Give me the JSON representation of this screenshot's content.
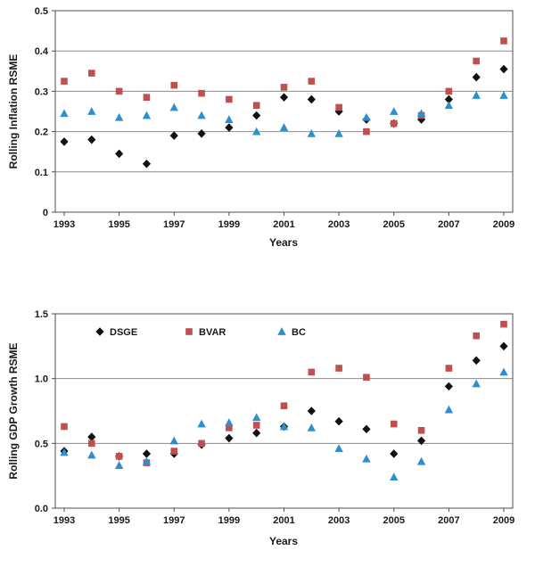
{
  "colors": {
    "grid": "#8c8c8c",
    "axis": "#4d4d4d",
    "text": "#1a1a1a"
  },
  "chart_data": [
    {
      "type": "scatter",
      "title": "",
      "ylabel": "Rolling Inflation RSME",
      "xlabel": "Years",
      "ylim": [
        0,
        0.5
      ],
      "yticks": [
        0,
        0.1,
        0.2,
        0.3,
        0.4,
        0.5
      ],
      "ytick_labels": [
        "0",
        "0.1",
        "0.2",
        "0.3",
        "0.4",
        "0.5"
      ],
      "x": [
        1993,
        1994,
        1995,
        1996,
        1997,
        1998,
        1999,
        2000,
        2001,
        2002,
        2003,
        2004,
        2005,
        2006,
        2007,
        2008,
        2009
      ],
      "xticks": [
        1993,
        1995,
        1997,
        1999,
        2001,
        2003,
        2005,
        2007,
        2009
      ],
      "xtick_labels": [
        "1993",
        "1995",
        "1997",
        "1999",
        "2001",
        "2003",
        "2005",
        "2007",
        "2009"
      ],
      "grid": true,
      "legend": "none",
      "series": [
        {
          "name": "DSGE",
          "marker": "diamond",
          "color": "#111111",
          "values": [
            0.175,
            0.18,
            0.145,
            0.12,
            0.19,
            0.195,
            0.21,
            0.24,
            0.285,
            0.28,
            0.25,
            0.23,
            0.22,
            0.23,
            0.28,
            0.335,
            0.355
          ]
        },
        {
          "name": "BVAR",
          "marker": "square",
          "color": "#c0504d",
          "values": [
            0.325,
            0.345,
            0.3,
            0.285,
            0.315,
            0.295,
            0.28,
            0.265,
            0.31,
            0.325,
            0.26,
            0.2,
            0.22,
            0.24,
            0.3,
            0.375,
            0.425
          ]
        },
        {
          "name": "BC",
          "marker": "triangle",
          "color": "#2e8fce",
          "values": [
            0.245,
            0.25,
            0.235,
            0.24,
            0.26,
            0.24,
            0.23,
            0.2,
            0.21,
            0.195,
            0.195,
            0.235,
            0.25,
            0.245,
            0.265,
            0.29,
            0.29
          ]
        }
      ]
    },
    {
      "type": "scatter",
      "title": "",
      "ylabel": "Rolling GDP Growth RSME",
      "xlabel": "Years",
      "ylim": [
        0,
        1.5
      ],
      "yticks": [
        0,
        0.5,
        1.0,
        1.5
      ],
      "ytick_labels": [
        "0.0",
        "0.5",
        "1.0",
        "1.5"
      ],
      "x": [
        1993,
        1994,
        1995,
        1996,
        1997,
        1998,
        1999,
        2000,
        2001,
        2002,
        2003,
        2004,
        2005,
        2006,
        2007,
        2008,
        2009
      ],
      "xticks": [
        1993,
        1995,
        1997,
        1999,
        2001,
        2003,
        2005,
        2007,
        2009
      ],
      "xtick_labels": [
        "1993",
        "1995",
        "1997",
        "1999",
        "2001",
        "2003",
        "2005",
        "2007",
        "2009"
      ],
      "grid": true,
      "legend": "top-inside",
      "series": [
        {
          "name": "DSGE",
          "marker": "diamond",
          "color": "#111111",
          "values": [
            0.44,
            0.55,
            0.4,
            0.42,
            0.42,
            0.49,
            0.54,
            0.58,
            0.63,
            0.75,
            0.67,
            0.61,
            0.42,
            0.52,
            0.94,
            1.14,
            1.25
          ]
        },
        {
          "name": "BVAR",
          "marker": "square",
          "color": "#c0504d",
          "values": [
            0.63,
            0.5,
            0.4,
            0.35,
            0.44,
            0.5,
            0.62,
            0.64,
            0.79,
            1.05,
            1.08,
            1.01,
            0.65,
            0.6,
            1.08,
            1.33,
            1.42
          ]
        },
        {
          "name": "BC",
          "marker": "triangle",
          "color": "#2e8fce",
          "values": [
            0.43,
            0.41,
            0.33,
            0.36,
            0.52,
            0.65,
            0.66,
            0.7,
            0.63,
            0.62,
            0.46,
            0.38,
            0.24,
            0.36,
            0.76,
            0.96,
            1.05
          ]
        }
      ]
    }
  ]
}
